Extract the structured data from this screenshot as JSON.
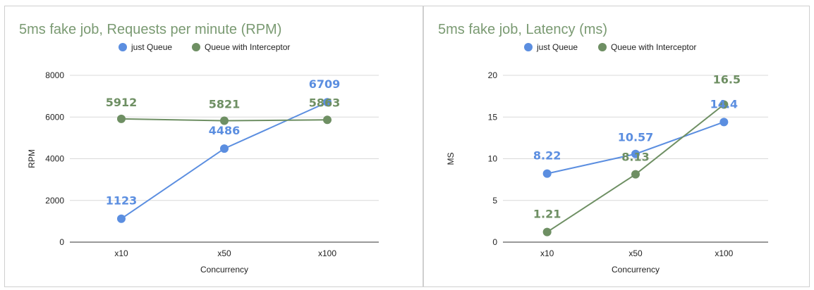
{
  "chart_data": [
    {
      "type": "line",
      "title": "5ms fake job, Requests per minute (RPM)",
      "xlabel": "Concurrency",
      "ylabel": "RPM",
      "categories": [
        "x10",
        "x50",
        "x100"
      ],
      "ylim": [
        0,
        8000
      ],
      "yticks": [
        0,
        2000,
        4000,
        6000,
        8000
      ],
      "grid": true,
      "legend_position": "top",
      "series": [
        {
          "name": "just Queue",
          "color": "#5b8ee0",
          "values": [
            1123,
            4486,
            6709
          ],
          "labels": [
            "1123",
            "4486",
            "6709"
          ]
        },
        {
          "name": "Queue with Interceptor",
          "color": "#6e8f63",
          "values": [
            5912,
            5821,
            5863
          ],
          "labels": [
            "5912",
            "5821",
            "5863"
          ]
        }
      ]
    },
    {
      "type": "line",
      "title": "5ms fake job, Latency (ms)",
      "xlabel": "Concurrency",
      "ylabel": "MS",
      "categories": [
        "x10",
        "x50",
        "x100"
      ],
      "ylim": [
        0,
        20
      ],
      "yticks": [
        0,
        5,
        10,
        15,
        20
      ],
      "grid": true,
      "legend_position": "top",
      "series": [
        {
          "name": "just Queue",
          "color": "#5b8ee0",
          "values": [
            8.22,
            10.57,
            14.4
          ],
          "labels": [
            "8.22",
            "10.57",
            "14.4"
          ]
        },
        {
          "name": "Queue with Interceptor",
          "color": "#6e8f63",
          "values": [
            1.21,
            8.13,
            16.5
          ],
          "labels": [
            "1.21",
            "8.13",
            "16.5"
          ]
        }
      ]
    }
  ]
}
